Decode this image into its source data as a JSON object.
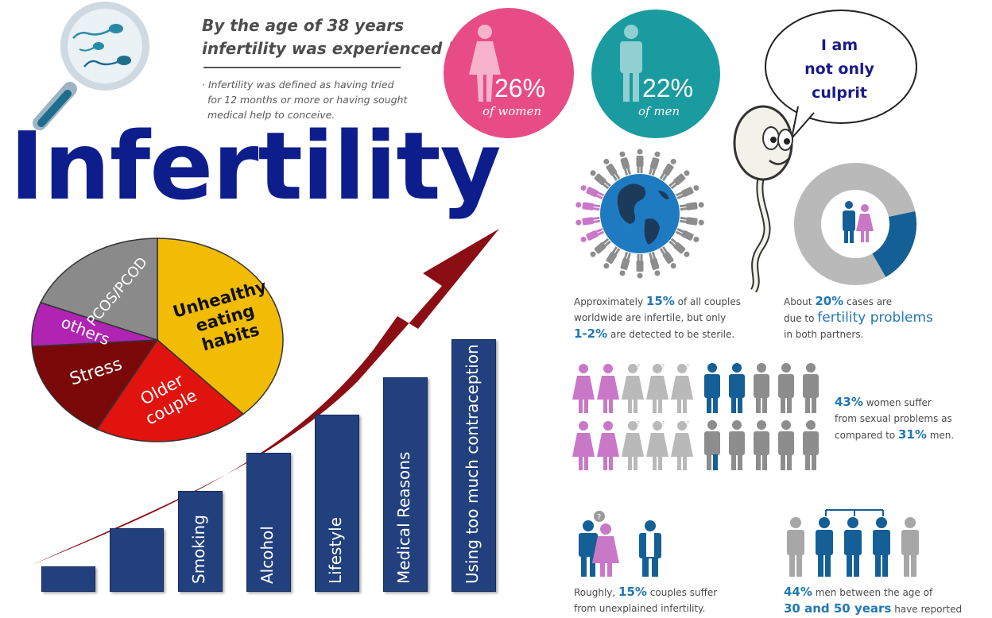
{
  "title": "Infertility",
  "survey": {
    "heading_line1": "By the age of 38 years",
    "heading_line2": "infertility was experienced by",
    "note_line1": "· Infertility was defined as having tried",
    "note_line2": "for 12 months or more or having sought",
    "note_line3": "medical help to conceive.",
    "women_pct": "26%",
    "women_label": "of women",
    "men_pct": "22%",
    "men_label": "of men",
    "women_color": "#e84c86",
    "men_color": "#1a9ba0"
  },
  "speech_bubble": {
    "line1": "I am",
    "line2": "not only",
    "line3": "culprit"
  },
  "pie": {
    "slices": [
      {
        "label": "Unhealthy eating habits",
        "label_lines": [
          "Unhealthy",
          "eating",
          "habits"
        ],
        "color": "#f2bc04",
        "share": 38
      },
      {
        "label": "Older couple",
        "label_lines": [
          "Older",
          "couple"
        ],
        "color": "#e0130f",
        "share": 20
      },
      {
        "label": "Stress",
        "label_lines": [
          "Stress"
        ],
        "color": "#7b0808",
        "share": 16
      },
      {
        "label": "others",
        "label_lines": [
          "others"
        ],
        "color": "#b123b3",
        "share": 7
      },
      {
        "label": "PCOS/PCOD",
        "label_lines": [
          "PCOS/PCOD"
        ],
        "color": "#8a8a8a",
        "share": 19
      }
    ]
  },
  "bars": {
    "items": [
      {
        "label": "",
        "level": 1
      },
      {
        "label": "",
        "level": 2
      },
      {
        "label": "Smoking",
        "level": 3
      },
      {
        "label": "Alcohol",
        "level": 4
      },
      {
        "label": "Lifestyle",
        "level": 5
      },
      {
        "label": "Medical Reasons",
        "level": 6
      },
      {
        "label": "Using too much contraception",
        "level": 7
      }
    ],
    "color": "#22407d",
    "arrow_color": "#8c0e15"
  },
  "stats": {
    "couples_pre": "Approximately",
    "couples_pct": "15%",
    "couples_mid": "of all couples",
    "couples_line2": "worldwide are infertile, but only",
    "couples_sterile_pct": "1-2%",
    "couples_end": "are detected to be sterile.",
    "both_pre": "About",
    "both_pct": "20%",
    "both_mid": "cases are",
    "both_line2_pre": "due to",
    "both_line2_hl": "fertility problems",
    "both_line3": "in both partners.",
    "sexual_pct_women": "43%",
    "sexual_line1": "women suffer",
    "sexual_line2": "from sexual problems as",
    "sexual_line3_pre": "compared to",
    "sexual_pct_men": "31%",
    "sexual_line3_end": "men.",
    "unexplained_pre": "Roughly,",
    "unexplained_pct": "15%",
    "unexplained_mid": "couples suffer",
    "unexplained_line2": "from unexplained infertility.",
    "men_age_pct": "44%",
    "men_age_line1": "men between the age of",
    "men_age_range": "30 and 50 years",
    "men_age_end": "have reported",
    "highlight_color": "#2177b5"
  }
}
